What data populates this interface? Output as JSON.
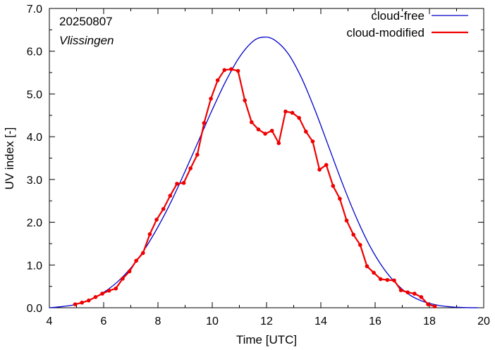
{
  "chart_data": {
    "type": "line",
    "xlabel": "Time  [UTC]",
    "ylabel": "UV index  [-]",
    "xlim": [
      4,
      20
    ],
    "ylim": [
      0,
      7
    ],
    "xticks": [
      4,
      6,
      8,
      10,
      12,
      14,
      16,
      18,
      20
    ],
    "xtick_labels": [
      "4",
      "6",
      "8",
      "10",
      "12",
      "14",
      "16",
      "18",
      "20"
    ],
    "yticks": [
      0,
      1,
      2,
      3,
      4,
      5,
      6,
      7
    ],
    "ytick_labels": [
      "0.0",
      "1.0",
      "2.0",
      "3.0",
      "4.0",
      "5.0",
      "6.0",
      "7.0"
    ],
    "grid": false,
    "legend_position": "top-right",
    "annotations": {
      "date": "20250807",
      "station": "Vlissingen"
    },
    "series": [
      {
        "name": "cloud-free",
        "color": "#0000cc",
        "markers": false,
        "x": [
          4.0,
          4.5,
          5.0,
          5.5,
          6.0,
          6.5,
          7.0,
          7.5,
          8.0,
          8.5,
          9.0,
          9.5,
          10.0,
          10.5,
          11.0,
          11.5,
          11.9,
          12.3,
          12.8,
          13.3,
          13.8,
          14.3,
          14.8,
          15.3,
          15.8,
          16.3,
          16.8,
          17.3,
          17.8,
          18.3,
          18.8,
          19.3,
          19.8
        ],
        "y": [
          0.0,
          0.03,
          0.08,
          0.19,
          0.36,
          0.6,
          0.93,
          1.36,
          1.89,
          2.5,
          3.19,
          3.91,
          4.63,
          5.3,
          5.86,
          6.23,
          6.33,
          6.26,
          5.94,
          5.36,
          4.6,
          3.75,
          2.9,
          2.12,
          1.45,
          0.93,
          0.55,
          0.29,
          0.14,
          0.06,
          0.02,
          0.005,
          0.0
        ]
      },
      {
        "name": "cloud-modified",
        "color": "#ee0000",
        "markers": true,
        "x": [
          4.95,
          5.2,
          5.45,
          5.7,
          5.95,
          6.2,
          6.45,
          6.7,
          6.95,
          7.2,
          7.45,
          7.7,
          7.95,
          8.2,
          8.45,
          8.7,
          8.95,
          9.2,
          9.45,
          9.7,
          9.95,
          10.2,
          10.45,
          10.7,
          10.95,
          11.2,
          11.45,
          11.7,
          11.95,
          12.2,
          12.45,
          12.7,
          12.95,
          13.2,
          13.45,
          13.7,
          13.95,
          14.2,
          14.45,
          14.7,
          14.95,
          15.2,
          15.45,
          15.7,
          15.95,
          16.2,
          16.45,
          16.7,
          16.95,
          17.2,
          17.45,
          17.7,
          17.95,
          18.2
        ],
        "y": [
          0.08,
          0.12,
          0.17,
          0.25,
          0.33,
          0.4,
          0.45,
          0.68,
          0.85,
          1.1,
          1.28,
          1.72,
          2.06,
          2.31,
          2.62,
          2.9,
          2.92,
          3.26,
          3.58,
          4.32,
          4.89,
          5.32,
          5.56,
          5.58,
          5.54,
          4.85,
          4.34,
          4.17,
          4.07,
          4.14,
          3.85,
          4.59,
          4.56,
          4.44,
          4.12,
          3.89,
          3.23,
          3.34,
          2.85,
          2.55,
          2.04,
          1.71,
          1.47,
          0.97,
          0.82,
          0.67,
          0.65,
          0.64,
          0.41,
          0.36,
          0.33,
          0.25,
          0.08,
          0.03
        ]
      }
    ]
  }
}
